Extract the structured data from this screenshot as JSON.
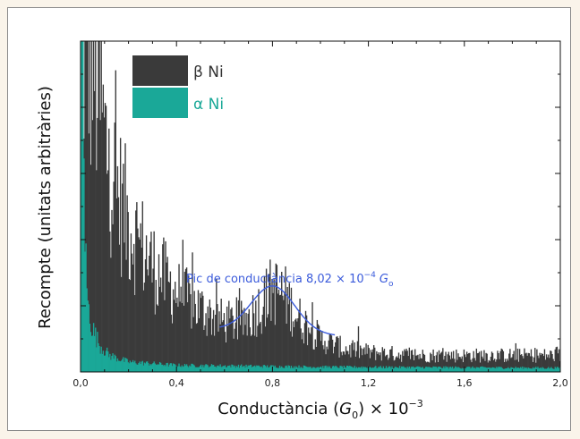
{
  "chart_data": {
    "type": "area",
    "xlabel": "Conductància (G0) × 10⁻³",
    "xlabel_parts": {
      "pre": "Conductància (",
      "G": "G",
      "sub": "0",
      "post": ") × 10",
      "sup": "−3"
    },
    "ylabel": "Recompte (unitats arbitràries)",
    "xlim": [
      0.0,
      2.0
    ],
    "x_ticks": [
      "0,0",
      "0,4",
      "0,8",
      "1,2",
      "1,6",
      "2,0"
    ],
    "x_tick_values": [
      0.0,
      0.4,
      0.8,
      1.2,
      1.6,
      2.0
    ],
    "ylim": [
      0,
      100
    ],
    "y_tick_labels_shown": false,
    "series": [
      {
        "name": "β Ni",
        "color": "#3a3a3a",
        "envelope": [
          [
            0.0,
            100
          ],
          [
            0.02,
            100
          ],
          [
            0.05,
            95
          ],
          [
            0.08,
            82
          ],
          [
            0.1,
            70
          ],
          [
            0.15,
            55
          ],
          [
            0.2,
            45
          ],
          [
            0.3,
            32
          ],
          [
            0.4,
            24
          ],
          [
            0.5,
            19
          ],
          [
            0.6,
            15
          ],
          [
            0.68,
            15
          ],
          [
            0.75,
            20
          ],
          [
            0.8,
            25
          ],
          [
            0.85,
            23
          ],
          [
            0.9,
            17
          ],
          [
            1.0,
            10
          ],
          [
            1.1,
            7
          ],
          [
            1.2,
            6
          ],
          [
            1.4,
            5
          ],
          [
            1.6,
            5
          ],
          [
            1.8,
            5
          ],
          [
            2.0,
            5
          ]
        ]
      },
      {
        "name": "α Ni",
        "color": "#1aa898",
        "envelope": [
          [
            0.0,
            100
          ],
          [
            0.01,
            100
          ],
          [
            0.015,
            60
          ],
          [
            0.02,
            35
          ],
          [
            0.03,
            20
          ],
          [
            0.05,
            13
          ],
          [
            0.08,
            8
          ],
          [
            0.12,
            5
          ],
          [
            0.2,
            3
          ],
          [
            0.4,
            2
          ],
          [
            1.0,
            1.5
          ],
          [
            2.0,
            1.2
          ]
        ]
      }
    ],
    "fit": {
      "color": "#3b5bdb",
      "center": 0.802,
      "amplitude": 14,
      "baseline": 12,
      "x_range": [
        0.58,
        1.06
      ]
    },
    "legend": {
      "placement": "top-left",
      "entries": [
        {
          "prefix": "β",
          "label": " Ni",
          "color": "#3a3a3a",
          "text_color": "#333333"
        },
        {
          "prefix": "α",
          "label": " Ni",
          "color": "#1aa898",
          "text_color": "#1aa898"
        }
      ]
    },
    "annotation": {
      "text": "Pic de conductància 8,02 × 10⁻⁴ G0",
      "pre": "Pic de conductància 8,02 × 10",
      "sup": "−4",
      "G": "G",
      "sub": "o",
      "color": "#3b5bdb"
    },
    "grid": false
  }
}
